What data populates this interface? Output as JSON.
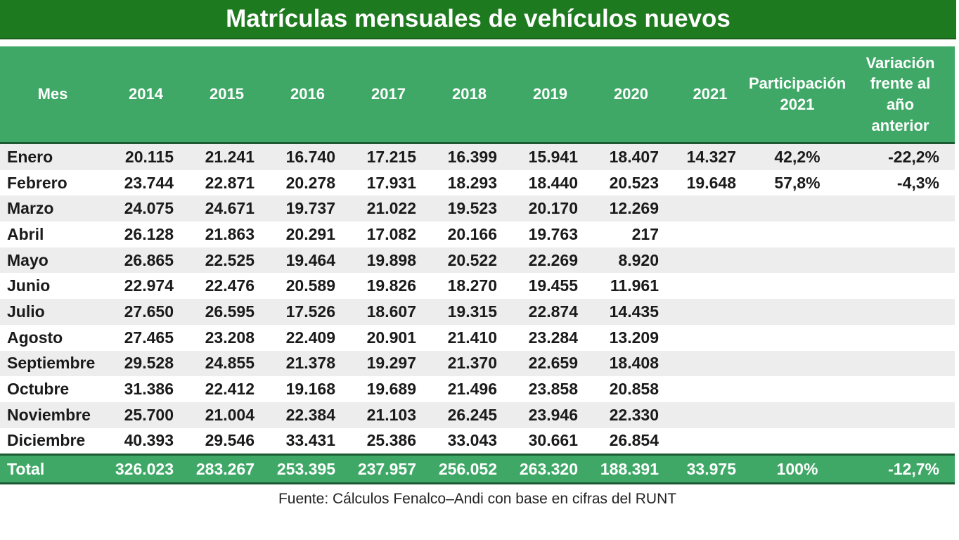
{
  "title": "Matrículas mensuales de vehículos nuevos",
  "source": "Fuente: Cálculos Fenalco–Andi con base en cifras del RUNT",
  "headers": {
    "mes": "Mes",
    "years": [
      "2014",
      "2015",
      "2016",
      "2017",
      "2018",
      "2019",
      "2020",
      "2021"
    ],
    "part_l1": "Participación",
    "part_l2": "2021",
    "var_l1": "Variación",
    "var_l2": "frente al",
    "var_l3": "año",
    "var_l4": "anterior"
  },
  "rows": [
    {
      "mes": "Enero",
      "v": [
        "20.115",
        "21.241",
        "16.740",
        "17.215",
        "16.399",
        "15.941",
        "18.407",
        "14.327"
      ],
      "part": "42,2%",
      "var": "-22,2%"
    },
    {
      "mes": "Febrero",
      "v": [
        "23.744",
        "22.871",
        "20.278",
        "17.931",
        "18.293",
        "18.440",
        "20.523",
        "19.648"
      ],
      "part": "57,8%",
      "var": "-4,3%"
    },
    {
      "mes": "Marzo",
      "v": [
        "24.075",
        "24.671",
        "19.737",
        "21.022",
        "19.523",
        "20.170",
        "12.269",
        ""
      ],
      "part": "",
      "var": ""
    },
    {
      "mes": "Abril",
      "v": [
        "26.128",
        "21.863",
        "20.291",
        "17.082",
        "20.166",
        "19.763",
        "217",
        ""
      ],
      "part": "",
      "var": ""
    },
    {
      "mes": "Mayo",
      "v": [
        "26.865",
        "22.525",
        "19.464",
        "19.898",
        "20.522",
        "22.269",
        "8.920",
        ""
      ],
      "part": "",
      "var": ""
    },
    {
      "mes": "Junio",
      "v": [
        "22.974",
        "22.476",
        "20.589",
        "19.826",
        "18.270",
        "19.455",
        "11.961",
        ""
      ],
      "part": "",
      "var": ""
    },
    {
      "mes": "Julio",
      "v": [
        "27.650",
        "26.595",
        "17.526",
        "18.607",
        "19.315",
        "22.874",
        "14.435",
        ""
      ],
      "part": "",
      "var": ""
    },
    {
      "mes": "Agosto",
      "v": [
        "27.465",
        "23.208",
        "22.409",
        "20.901",
        "21.410",
        "23.284",
        "13.209",
        ""
      ],
      "part": "",
      "var": ""
    },
    {
      "mes": "Septiembre",
      "v": [
        "29.528",
        "24.855",
        "21.378",
        "19.297",
        "21.370",
        "22.659",
        "18.408",
        ""
      ],
      "part": "",
      "var": ""
    },
    {
      "mes": "Octubre",
      "v": [
        "31.386",
        "22.412",
        "19.168",
        "19.689",
        "21.496",
        "23.858",
        "20.858",
        ""
      ],
      "part": "",
      "var": ""
    },
    {
      "mes": "Noviembre",
      "v": [
        "25.700",
        "21.004",
        "22.384",
        "21.103",
        "26.245",
        "23.946",
        "22.330",
        ""
      ],
      "part": "",
      "var": ""
    },
    {
      "mes": "Diciembre",
      "v": [
        "40.393",
        "29.546",
        "33.431",
        "25.386",
        "33.043",
        "30.661",
        "26.854",
        ""
      ],
      "part": "",
      "var": ""
    }
  ],
  "total": {
    "label": "Total",
    "v": [
      "326.023",
      "283.267",
      "253.395",
      "237.957",
      "256.052",
      "263.320",
      "188.391",
      "33.975"
    ],
    "part": "100%",
    "var": "-12,7%"
  },
  "colors": {
    "title_bg": "#1e7a1e",
    "header_bg": "#3fa867",
    "stripe": "#ededed"
  },
  "chart_data": {
    "type": "table",
    "title": "Matrículas mensuales de vehículos nuevos",
    "columns": [
      "Mes",
      "2014",
      "2015",
      "2016",
      "2017",
      "2018",
      "2019",
      "2020",
      "2021",
      "Participación 2021",
      "Variación frente al año anterior"
    ]
  }
}
